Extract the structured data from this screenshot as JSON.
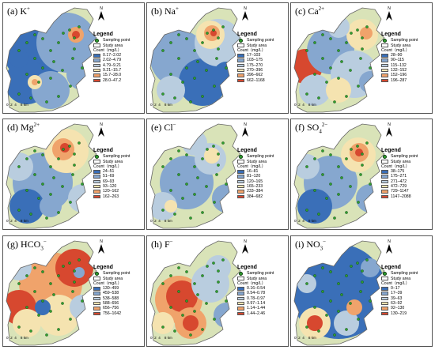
{
  "legend_labels": {
    "title": "Legend",
    "sampling_point": "Sampling point",
    "study_area": "Study area",
    "count_unit": "Count（mg/L）"
  },
  "north_label": "N",
  "scale_text": "0  2  4    8 km",
  "colors": {
    "classes": [
      "#3a6fb8",
      "#86a7cf",
      "#b9cddf",
      "#f5e3b0",
      "#f0a36b",
      "#d7482f"
    ],
    "study_area_fill": "#d9e3b8",
    "sampling_point": "#2f9f2f"
  },
  "panels": [
    {
      "id": "a",
      "title_prefix": "(a) K",
      "title_ion": "+",
      "classes": [
        "0.17–2.02",
        "2.02–4.79",
        "4.79–9.21",
        "9.21–15.7",
        "15.7–28.0",
        "28.0–47.2"
      ]
    },
    {
      "id": "b",
      "title_prefix": "(b) Na",
      "title_ion": "+",
      "classes": [
        "17–103",
        "103–175",
        "175–270",
        "270–396",
        "396–662",
        "662–1168"
      ]
    },
    {
      "id": "c",
      "title_prefix": "(c) Ca",
      "title_ion": "2+",
      "classes": [
        "28–90",
        "90–115",
        "115–132",
        "132–152",
        "152–196",
        "196–287"
      ]
    },
    {
      "id": "d",
      "title_prefix": "(d) Mg",
      "title_ion": "2+",
      "classes": [
        "24–51",
        "51–69",
        "69–93",
        "93–120",
        "120–162",
        "162–263"
      ]
    },
    {
      "id": "e",
      "title_prefix": "(e) Cl",
      "title_ion": "−",
      "classes": [
        "16–81",
        "81–120",
        "120–165",
        "165–233",
        "233–384",
        "384–682"
      ]
    },
    {
      "id": "f",
      "title_prefix": "(f) SO",
      "title_sub": "4",
      "title_ion": "2−",
      "classes": [
        "38–175",
        "175–271",
        "271–472",
        "472–729",
        "729–1147",
        "1147–2088"
      ]
    },
    {
      "id": "g",
      "title_prefix": "(g) HCO",
      "title_sub": "3",
      "title_ion": "−",
      "classes": [
        "130–459",
        "459–538",
        "538–588",
        "588–656",
        "656–756",
        "756–1042"
      ]
    },
    {
      "id": "h",
      "title_prefix": "(h) F",
      "title_ion": "−",
      "classes": [
        "0.16–0.54",
        "0.54–0.78",
        "0.78–0.97",
        "0.97–1.14",
        "1.14–1.44",
        "1.44–2.46"
      ]
    },
    {
      "id": "i",
      "title_prefix": "(i) NO",
      "title_sub": "3",
      "title_ion": "−",
      "classes": [
        "0–17",
        "17–39",
        "39–63",
        "63–92",
        "92–130",
        "130–219"
      ]
    }
  ]
}
